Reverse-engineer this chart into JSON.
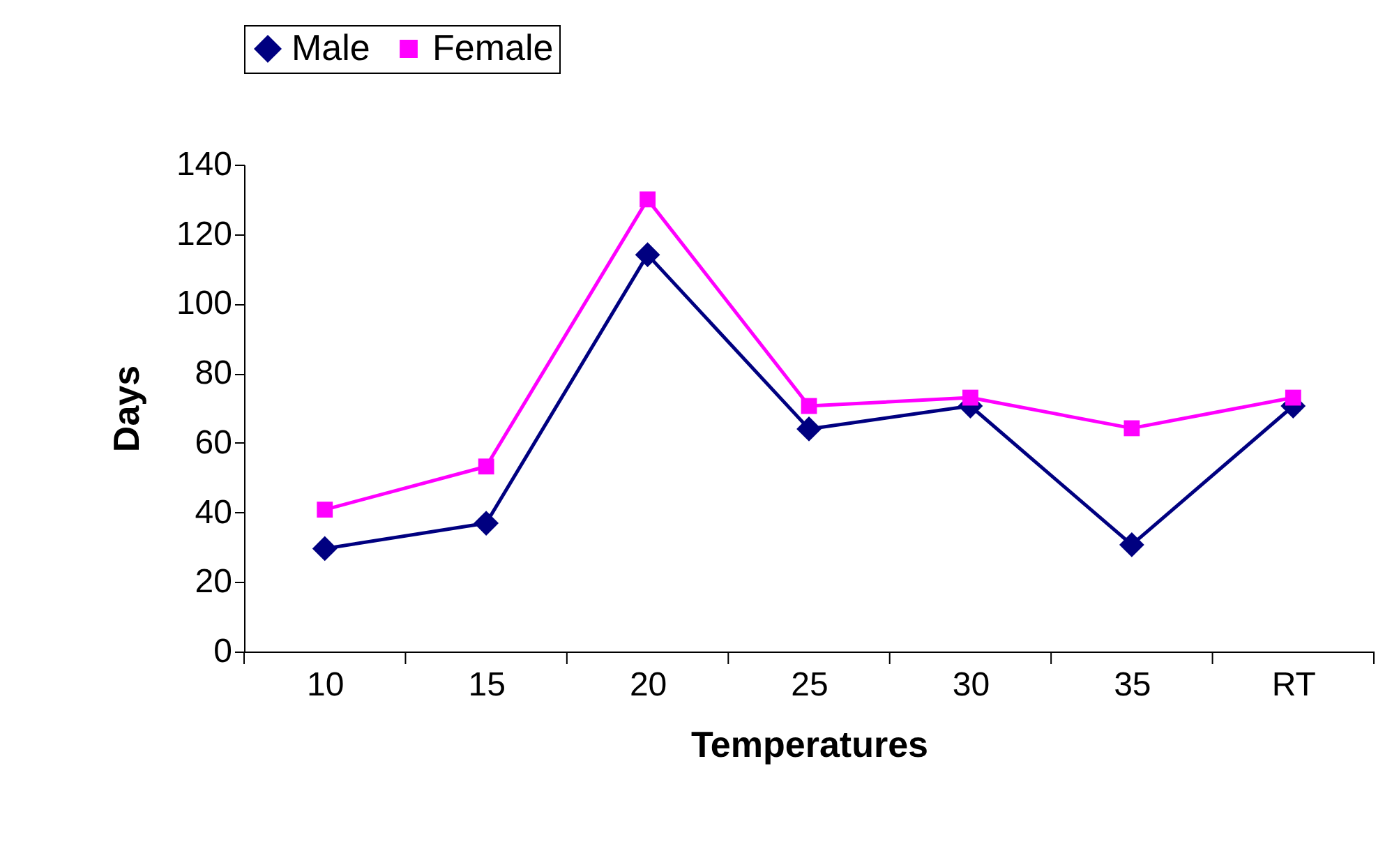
{
  "chart_data": {
    "type": "line",
    "xlabel": "Temperatures",
    "ylabel": "Days",
    "categories": [
      "10",
      "15",
      "20",
      "25",
      "30",
      "35",
      "RT"
    ],
    "series": [
      {
        "name": "Male",
        "color": "#000080",
        "marker": "diamond",
        "values": [
          29.6,
          36.9,
          114.1,
          64,
          70.6,
          30.7,
          70.6
        ]
      },
      {
        "name": "Female",
        "color": "#ff00ff",
        "marker": "square",
        "values": [
          40.8,
          53.2,
          130,
          70.6,
          73,
          64.2,
          73
        ]
      }
    ],
    "ylim": [
      0,
      140
    ],
    "yticks": [
      0,
      20,
      40,
      60,
      80,
      100,
      120,
      140
    ],
    "grid": false,
    "legend": "top",
    "line_style": "solid"
  }
}
